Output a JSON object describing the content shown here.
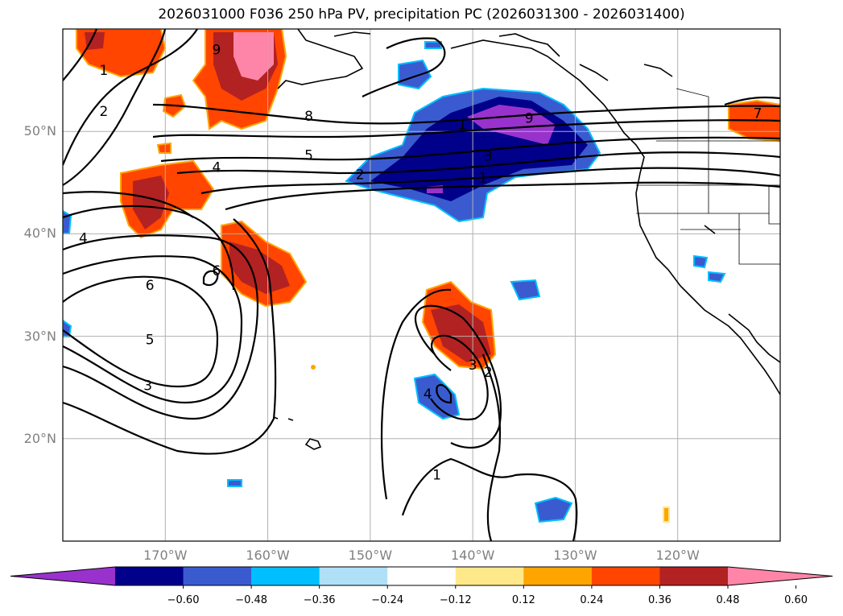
{
  "title": "2026031000 F036 250 hPa PV, precipitation PC (2026031300 - 2026031400)",
  "map": {
    "projection": "cylindrical",
    "lon_range": [
      -180,
      -110
    ],
    "lat_range": [
      10,
      60
    ],
    "lat_ticks": [
      {
        "label": "20°N",
        "value": 20
      },
      {
        "label": "30°N",
        "value": 30
      },
      {
        "label": "40°N",
        "value": 40
      },
      {
        "label": "50°N",
        "value": 50
      }
    ],
    "lon_ticks": [
      {
        "label": "170°W",
        "value": -170
      },
      {
        "label": "160°W",
        "value": -160
      },
      {
        "label": "150°W",
        "value": -150
      },
      {
        "label": "140°W",
        "value": -140
      },
      {
        "label": "130°W",
        "value": -130
      },
      {
        "label": "120°W",
        "value": -120
      }
    ],
    "contour_labels": [
      {
        "text": "1",
        "lon": -176,
        "lat": 56
      },
      {
        "text": "2",
        "lon": -176,
        "lat": 52
      },
      {
        "text": "9",
        "lon": -165,
        "lat": 58
      },
      {
        "text": "8",
        "lon": -156,
        "lat": 51.5
      },
      {
        "text": "5",
        "lon": -156,
        "lat": 47.7
      },
      {
        "text": "4",
        "lon": -165,
        "lat": 46.5
      },
      {
        "text": "2",
        "lon": -151,
        "lat": 45.8
      },
      {
        "text": "1",
        "lon": -141,
        "lat": 50.7
      },
      {
        "text": "3",
        "lon": -138.5,
        "lat": 47.6
      },
      {
        "text": "1",
        "lon": -139,
        "lat": 45.5
      },
      {
        "text": "9",
        "lon": -134.5,
        "lat": 51.3
      },
      {
        "text": "7",
        "lon": -112.2,
        "lat": 51.8
      },
      {
        "text": "4",
        "lon": -178,
        "lat": 39.6
      },
      {
        "text": "6",
        "lon": -171.5,
        "lat": 35
      },
      {
        "text": "6",
        "lon": -165,
        "lat": 36.4
      },
      {
        "text": "5",
        "lon": -171.5,
        "lat": 29.7
      },
      {
        "text": "3",
        "lon": -171.7,
        "lat": 25.2
      },
      {
        "text": "3",
        "lon": -140,
        "lat": 27.2
      },
      {
        "text": "2",
        "lon": -138.5,
        "lat": 26.5
      },
      {
        "text": "4",
        "lon": -144.4,
        "lat": 24.4
      },
      {
        "text": "1",
        "lon": -143.5,
        "lat": 16.5
      }
    ]
  },
  "colorbar": {
    "tick_labels": [
      "−0.60",
      "−0.48",
      "−0.36",
      "−0.24",
      "−0.12",
      "0.12",
      "0.24",
      "0.36",
      "0.48",
      "0.60"
    ],
    "colors": [
      "#9932cc",
      "#00008b",
      "#3a5bd0",
      "#00bfff",
      "#b0e0f8",
      "#ffffff",
      "#ffe88a",
      "#ffa500",
      "#ff4500",
      "#b22222",
      "#ff85a8"
    ]
  }
}
